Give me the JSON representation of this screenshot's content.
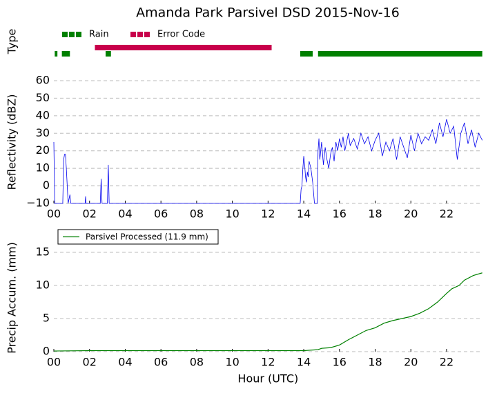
{
  "chart_data": [
    {
      "type": "timeline",
      "title": "Amanda Park Parsivel DSD 2015-Nov-16",
      "ylabel": "Type",
      "xlim": [
        0,
        24
      ],
      "series": [
        {
          "name": "Rain",
          "color": "#008000",
          "segments": [
            [
              0.05,
              0.2
            ],
            [
              0.45,
              0.9
            ],
            [
              2.9,
              3.2
            ],
            [
              13.8,
              14.5
            ],
            [
              14.8,
              24
            ]
          ]
        },
        {
          "name": "Error Code",
          "color": "#c8004b",
          "segments": [
            [
              2.3,
              12.2
            ]
          ]
        }
      ]
    },
    {
      "type": "line",
      "ylabel": "Reflectivity (dBZ)",
      "xlim": [
        0,
        24
      ],
      "ylim": [
        -10,
        60
      ],
      "grid": true,
      "xticks": [
        {
          "value": 0,
          "label": "00"
        },
        {
          "value": 2,
          "label": "02"
        },
        {
          "value": 4,
          "label": "04"
        },
        {
          "value": 6,
          "label": "06"
        },
        {
          "value": 8,
          "label": "08"
        },
        {
          "value": 10,
          "label": "10"
        },
        {
          "value": 12,
          "label": "12"
        },
        {
          "value": 14,
          "label": "14"
        },
        {
          "value": 16,
          "label": "16"
        },
        {
          "value": 18,
          "label": "18"
        },
        {
          "value": 20,
          "label": "20"
        },
        {
          "value": 22,
          "label": "22"
        }
      ],
      "yticks": [
        {
          "value": -10,
          "label": "−10"
        },
        0,
        10,
        20,
        30,
        40,
        50,
        60
      ],
      "series": [
        {
          "color": "#0000ee",
          "x": [
            0,
            0.05,
            0.5,
            0.55,
            0.6,
            0.65,
            0.7,
            0.75,
            0.8,
            0.9,
            0.95,
            1.75,
            1.78,
            1.8,
            2.6,
            2.65,
            2.7,
            3.0,
            3.05,
            3.1,
            13.8,
            13.85,
            13.9,
            13.95,
            14.0,
            14.05,
            14.1,
            14.15,
            14.2,
            14.25,
            14.3,
            14.4,
            14.5,
            14.6,
            14.75,
            14.8,
            14.85,
            14.9,
            15.0,
            15.1,
            15.2,
            15.3,
            15.4,
            15.5,
            15.6,
            15.7,
            15.8,
            15.9,
            16.0,
            16.1,
            16.2,
            16.3,
            16.4,
            16.5,
            16.6,
            16.8,
            17.0,
            17.2,
            17.4,
            17.6,
            17.8,
            18.0,
            18.2,
            18.4,
            18.6,
            18.8,
            19.0,
            19.2,
            19.4,
            19.6,
            19.8,
            20.0,
            20.2,
            20.4,
            20.6,
            20.8,
            21.0,
            21.2,
            21.4,
            21.6,
            21.8,
            22.0,
            22.2,
            22.4,
            22.6,
            22.8,
            23.0,
            23.2,
            23.4,
            23.6,
            23.8,
            24.0
          ],
          "values": [
            25,
            -10,
            -10,
            15,
            18,
            18,
            10,
            0,
            -10,
            -5,
            -10,
            -10,
            -6,
            -10,
            -10,
            4,
            -10,
            -10,
            12,
            -10,
            -10,
            -2,
            0,
            10,
            17,
            12,
            5,
            2,
            8,
            5,
            14,
            10,
            2,
            -10,
            -10,
            20,
            27,
            15,
            25,
            12,
            22,
            15,
            10,
            18,
            22,
            14,
            25,
            20,
            27,
            22,
            28,
            20,
            25,
            30,
            23,
            27,
            21,
            30,
            24,
            28,
            20,
            26,
            30,
            17,
            25,
            20,
            27,
            15,
            28,
            22,
            16,
            29,
            20,
            30,
            24,
            28,
            26,
            32,
            24,
            36,
            28,
            38,
            30,
            34,
            15,
            30,
            36,
            24,
            32,
            22,
            30,
            26
          ]
        }
      ]
    },
    {
      "type": "line",
      "ylabel": "Precip Accum. (mm)",
      "xlabel": "Hour (UTC)",
      "xlim": [
        0,
        24
      ],
      "ylim": [
        0,
        18
      ],
      "grid": true,
      "xticks": [
        {
          "value": 0,
          "label": "00"
        },
        {
          "value": 2,
          "label": "02"
        },
        {
          "value": 4,
          "label": "04"
        },
        {
          "value": 6,
          "label": "06"
        },
        {
          "value": 8,
          "label": "08"
        },
        {
          "value": 10,
          "label": "10"
        },
        {
          "value": 12,
          "label": "12"
        },
        {
          "value": 14,
          "label": "14"
        },
        {
          "value": 16,
          "label": "16"
        },
        {
          "value": 18,
          "label": "18"
        },
        {
          "value": 20,
          "label": "20"
        },
        {
          "value": 22,
          "label": "22"
        }
      ],
      "yticks": [
        0,
        5,
        10,
        15
      ],
      "series": [
        {
          "name": "Parsivel Processed (11.9 mm)",
          "color": "#008000",
          "x": [
            0,
            2,
            14,
            14.8,
            15,
            15.5,
            16,
            16.5,
            17,
            17.5,
            18,
            18.5,
            19,
            19.5,
            20,
            20.5,
            21,
            21.5,
            22,
            22.3,
            22.7,
            23,
            23.5,
            24
          ],
          "values": [
            0.1,
            0.15,
            0.15,
            0.3,
            0.5,
            0.6,
            1.0,
            1.8,
            2.5,
            3.2,
            3.6,
            4.3,
            4.7,
            5.0,
            5.3,
            5.8,
            6.5,
            7.5,
            8.8,
            9.5,
            10.0,
            10.8,
            11.5,
            11.9
          ]
        }
      ]
    }
  ]
}
